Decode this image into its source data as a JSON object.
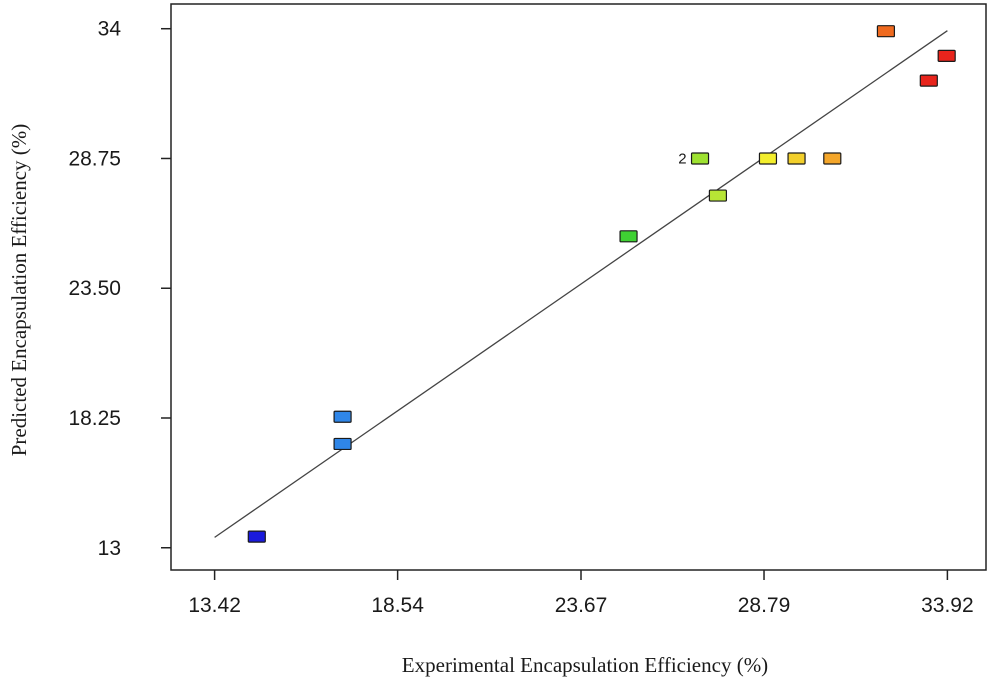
{
  "chart_data": {
    "type": "scatter",
    "xlabel": "Experimental  Encapsulation  Efficiency  (%)",
    "ylabel": "Predicted Encapsulation Efficiency  (%)",
    "x_ticks": [
      "13.42",
      "18.54",
      "23.67",
      "28.79",
      "33.92"
    ],
    "y_ticks": [
      "13",
      "18.25",
      "23.50",
      "28.75",
      "34"
    ],
    "xlim": [
      12.2,
      35.0
    ],
    "ylim": [
      12.1,
      35.0
    ],
    "grid": false,
    "fit_line": {
      "x": [
        13.42,
        33.92
      ],
      "y": [
        13.42,
        33.92
      ]
    },
    "points": [
      {
        "x": 14.6,
        "y": 13.45,
        "color": "#1a1adc"
      },
      {
        "x": 17.0,
        "y": 17.2,
        "color": "#2f86e8"
      },
      {
        "x": 17.0,
        "y": 18.3,
        "color": "#2f86e8"
      },
      {
        "x": 25.0,
        "y": 25.6,
        "color": "#3fd133"
      },
      {
        "x": 27.0,
        "y": 28.75,
        "color": "#9ee231",
        "label": "2"
      },
      {
        "x": 27.5,
        "y": 27.25,
        "color": "#b7e535"
      },
      {
        "x": 28.9,
        "y": 28.75,
        "color": "#f3ee2d"
      },
      {
        "x": 29.7,
        "y": 28.75,
        "color": "#f2cf2b"
      },
      {
        "x": 30.7,
        "y": 28.75,
        "color": "#f4a62a"
      },
      {
        "x": 32.2,
        "y": 33.9,
        "color": "#ef6a1f"
      },
      {
        "x": 33.4,
        "y": 31.9,
        "color": "#e8241c"
      },
      {
        "x": 33.9,
        "y": 32.9,
        "color": "#e8241c"
      }
    ]
  }
}
